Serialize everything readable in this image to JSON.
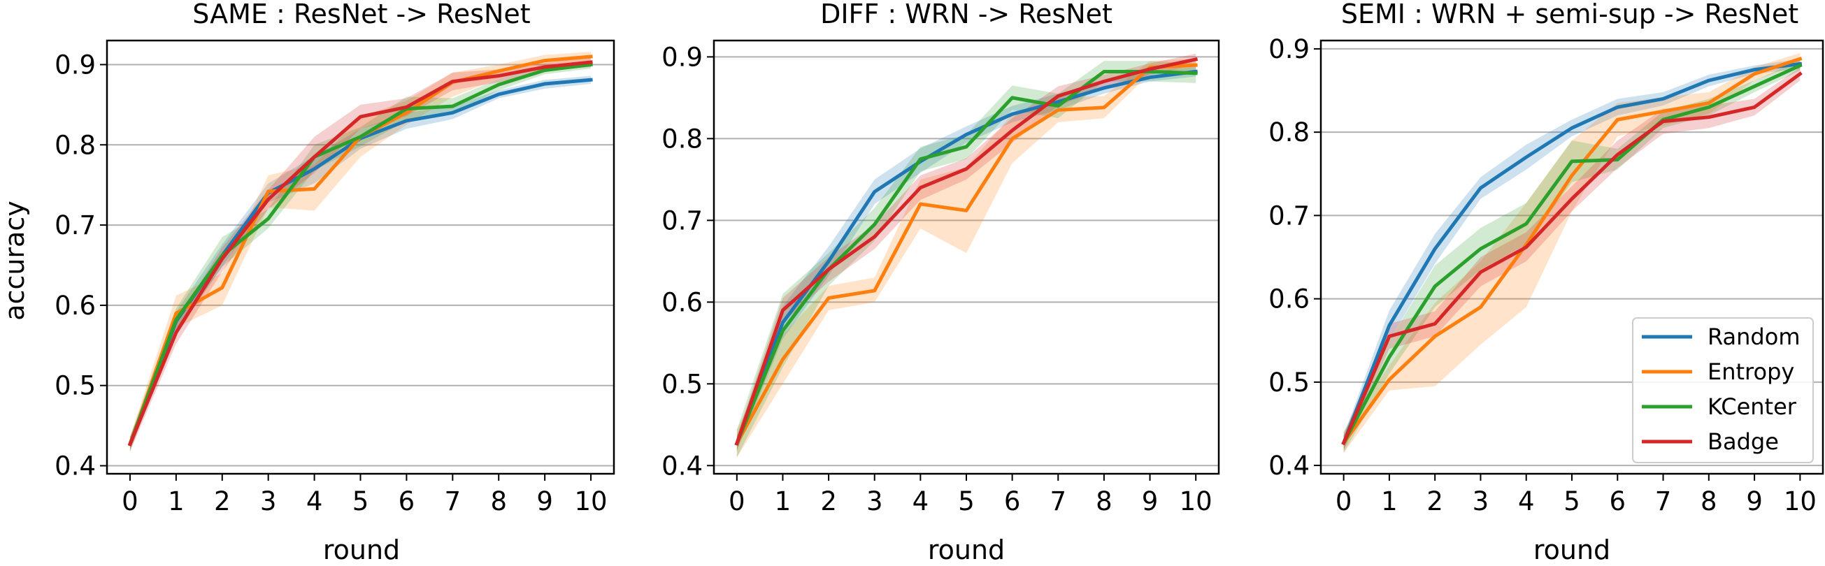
{
  "chart_data": [
    {
      "type": "line",
      "title": "SAME : ResNet -> ResNet",
      "xlabel": "round",
      "ylabel": "accuracy",
      "x": [
        0,
        1,
        2,
        3,
        4,
        5,
        6,
        7,
        8,
        9,
        10
      ],
      "xticks": [
        "0",
        "1",
        "2",
        "3",
        "4",
        "5",
        "6",
        "7",
        "8",
        "9",
        "10"
      ],
      "yticks": [
        "0.4",
        "0.5",
        "0.6",
        "0.7",
        "0.8",
        "0.9"
      ],
      "ylim": [
        0.39,
        0.93
      ],
      "grid": "horizontal",
      "legend": null,
      "series": [
        {
          "name": "Random",
          "values": [
            0.427,
            0.58,
            0.662,
            0.74,
            0.77,
            0.808,
            0.83,
            0.84,
            0.863,
            0.876,
            0.881
          ],
          "lower": [
            0.42,
            0.565,
            0.648,
            0.728,
            0.752,
            0.795,
            0.82,
            0.832,
            0.858,
            0.87,
            0.876
          ],
          "upper": [
            0.434,
            0.592,
            0.676,
            0.752,
            0.786,
            0.82,
            0.84,
            0.848,
            0.868,
            0.881,
            0.886
          ]
        },
        {
          "name": "Entropy",
          "values": [
            0.427,
            0.59,
            0.622,
            0.742,
            0.745,
            0.81,
            0.84,
            0.878,
            0.892,
            0.905,
            0.91
          ],
          "lower": [
            0.418,
            0.572,
            0.6,
            0.722,
            0.718,
            0.785,
            0.825,
            0.86,
            0.882,
            0.898,
            0.904
          ],
          "upper": [
            0.436,
            0.612,
            0.64,
            0.762,
            0.775,
            0.835,
            0.855,
            0.89,
            0.9,
            0.912,
            0.916
          ]
        },
        {
          "name": "KCenter",
          "values": [
            0.427,
            0.582,
            0.662,
            0.708,
            0.785,
            0.81,
            0.845,
            0.848,
            0.875,
            0.893,
            0.9
          ],
          "lower": [
            0.418,
            0.568,
            0.648,
            0.696,
            0.768,
            0.798,
            0.83,
            0.838,
            0.868,
            0.888,
            0.895
          ],
          "upper": [
            0.436,
            0.596,
            0.685,
            0.72,
            0.8,
            0.822,
            0.86,
            0.858,
            0.882,
            0.898,
            0.905
          ]
        },
        {
          "name": "Badge",
          "values": [
            0.427,
            0.566,
            0.658,
            0.732,
            0.785,
            0.835,
            0.847,
            0.879,
            0.886,
            0.897,
            0.903
          ],
          "lower": [
            0.418,
            0.552,
            0.642,
            0.72,
            0.765,
            0.82,
            0.836,
            0.868,
            0.878,
            0.892,
            0.897
          ],
          "upper": [
            0.436,
            0.58,
            0.672,
            0.744,
            0.81,
            0.85,
            0.858,
            0.89,
            0.894,
            0.902,
            0.909
          ]
        }
      ]
    },
    {
      "type": "line",
      "title": "DIFF : WRN -> ResNet",
      "xlabel": "round",
      "ylabel": "",
      "x": [
        0,
        1,
        2,
        3,
        4,
        5,
        6,
        7,
        8,
        9,
        10
      ],
      "xticks": [
        "0",
        "1",
        "2",
        "3",
        "4",
        "5",
        "6",
        "7",
        "8",
        "9",
        "10"
      ],
      "yticks": [
        "0.4",
        "0.5",
        "0.6",
        "0.7",
        "0.8",
        "0.9"
      ],
      "ylim": [
        0.39,
        0.92
      ],
      "grid": "horizontal",
      "legend": null,
      "series": [
        {
          "name": "Random",
          "values": [
            0.427,
            0.575,
            0.65,
            0.735,
            0.772,
            0.805,
            0.83,
            0.845,
            0.862,
            0.875,
            0.882
          ],
          "lower": [
            0.418,
            0.555,
            0.632,
            0.72,
            0.758,
            0.795,
            0.82,
            0.835,
            0.855,
            0.87,
            0.876
          ],
          "upper": [
            0.436,
            0.595,
            0.668,
            0.75,
            0.788,
            0.815,
            0.84,
            0.855,
            0.87,
            0.882,
            0.888
          ]
        },
        {
          "name": "Entropy",
          "values": [
            0.427,
            0.53,
            0.605,
            0.614,
            0.72,
            0.712,
            0.8,
            0.835,
            0.838,
            0.887,
            0.89
          ],
          "lower": [
            0.41,
            0.5,
            0.59,
            0.6,
            0.69,
            0.66,
            0.77,
            0.82,
            0.825,
            0.88,
            0.882
          ],
          "upper": [
            0.444,
            0.56,
            0.62,
            0.63,
            0.75,
            0.765,
            0.83,
            0.85,
            0.852,
            0.895,
            0.898
          ]
        },
        {
          "name": "KCenter",
          "values": [
            0.427,
            0.565,
            0.64,
            0.695,
            0.775,
            0.79,
            0.85,
            0.84,
            0.882,
            0.882,
            0.88
          ],
          "lower": [
            0.41,
            0.52,
            0.62,
            0.675,
            0.76,
            0.775,
            0.835,
            0.825,
            0.87,
            0.87,
            0.868
          ],
          "upper": [
            0.444,
            0.61,
            0.66,
            0.715,
            0.79,
            0.805,
            0.865,
            0.855,
            0.895,
            0.895,
            0.892
          ]
        },
        {
          "name": "Badge",
          "values": [
            0.427,
            0.59,
            0.64,
            0.68,
            0.74,
            0.763,
            0.81,
            0.852,
            0.87,
            0.885,
            0.897
          ],
          "lower": [
            0.418,
            0.575,
            0.625,
            0.665,
            0.725,
            0.75,
            0.795,
            0.84,
            0.862,
            0.878,
            0.89
          ],
          "upper": [
            0.436,
            0.605,
            0.655,
            0.695,
            0.755,
            0.776,
            0.825,
            0.864,
            0.878,
            0.892,
            0.904
          ]
        }
      ]
    },
    {
      "type": "line",
      "title": "SEMI : WRN + semi-sup -> ResNet",
      "xlabel": "round",
      "ylabel": "",
      "x": [
        0,
        1,
        2,
        3,
        4,
        5,
        6,
        7,
        8,
        9,
        10
      ],
      "xticks": [
        "0",
        "1",
        "2",
        "3",
        "4",
        "5",
        "6",
        "7",
        "8",
        "9",
        "10"
      ],
      "yticks": [
        "0.4",
        "0.5",
        "0.6",
        "0.7",
        "0.8",
        "0.9"
      ],
      "ylim": [
        0.39,
        0.91
      ],
      "grid": "horizontal",
      "legend": "lower right",
      "series": [
        {
          "name": "Random",
          "values": [
            0.427,
            0.568,
            0.66,
            0.733,
            0.77,
            0.805,
            0.83,
            0.84,
            0.862,
            0.875,
            0.882
          ],
          "lower": [
            0.418,
            0.55,
            0.642,
            0.72,
            0.755,
            0.795,
            0.82,
            0.832,
            0.855,
            0.87,
            0.876
          ],
          "upper": [
            0.436,
            0.586,
            0.678,
            0.746,
            0.785,
            0.815,
            0.84,
            0.848,
            0.869,
            0.88,
            0.888
          ]
        },
        {
          "name": "Entropy",
          "values": [
            0.427,
            0.503,
            0.555,
            0.59,
            0.665,
            0.748,
            0.815,
            0.825,
            0.835,
            0.87,
            0.888
          ],
          "lower": [
            0.415,
            0.49,
            0.495,
            0.545,
            0.59,
            0.705,
            0.795,
            0.808,
            0.822,
            0.862,
            0.882
          ],
          "upper": [
            0.44,
            0.52,
            0.595,
            0.645,
            0.715,
            0.79,
            0.835,
            0.842,
            0.848,
            0.878,
            0.895
          ]
        },
        {
          "name": "KCenter",
          "values": [
            0.427,
            0.53,
            0.615,
            0.66,
            0.69,
            0.765,
            0.767,
            0.815,
            0.83,
            0.855,
            0.88
          ],
          "lower": [
            0.415,
            0.51,
            0.59,
            0.635,
            0.665,
            0.74,
            0.755,
            0.805,
            0.82,
            0.848,
            0.874
          ],
          "upper": [
            0.44,
            0.55,
            0.64,
            0.685,
            0.715,
            0.79,
            0.78,
            0.825,
            0.84,
            0.862,
            0.886
          ]
        },
        {
          "name": "Badge",
          "values": [
            0.427,
            0.555,
            0.57,
            0.632,
            0.662,
            0.72,
            0.773,
            0.813,
            0.818,
            0.83,
            0.87
          ],
          "lower": [
            0.418,
            0.54,
            0.555,
            0.615,
            0.645,
            0.705,
            0.757,
            0.798,
            0.805,
            0.82,
            0.862
          ],
          "upper": [
            0.436,
            0.57,
            0.585,
            0.65,
            0.68,
            0.735,
            0.79,
            0.828,
            0.832,
            0.84,
            0.878
          ]
        }
      ]
    }
  ],
  "colors": {
    "Random": "#1f77b4",
    "Entropy": "#ff7f0e",
    "KCenter": "#2ca02c",
    "Badge": "#d62728",
    "grid": "#b0b0b0",
    "axes": "#000000"
  }
}
